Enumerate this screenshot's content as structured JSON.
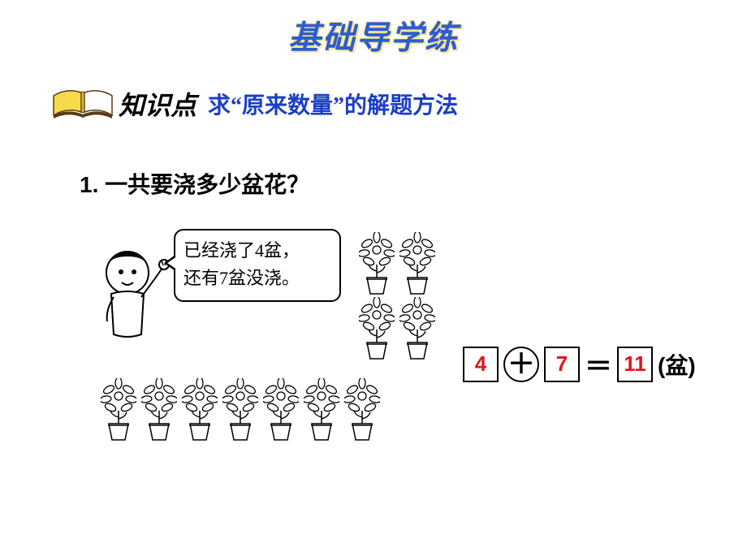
{
  "title": "基础导学练",
  "knowledgePoint": {
    "label": "知识点",
    "text": "求“原来数量”的解题方法",
    "color": "#1b3fc6"
  },
  "question": {
    "number": "1.",
    "text": "一共要浇多少盆花？"
  },
  "speech": {
    "line1": "已经浇了4盆，",
    "line2": "还有7盆没浇。"
  },
  "flowers": {
    "topGrid": [
      [
        330,
        10
      ],
      [
        380,
        10
      ],
      [
        330,
        90
      ],
      [
        380,
        90
      ]
    ],
    "bottomRow": [
      [
        12,
        190
      ],
      [
        62,
        190
      ],
      [
        112,
        190
      ],
      [
        162,
        190
      ],
      [
        212,
        190
      ],
      [
        262,
        190
      ],
      [
        312,
        190
      ]
    ]
  },
  "equation": {
    "a": "4",
    "op": "＋",
    "b": "7",
    "eq": "＝",
    "result": "11",
    "unit": "(盆)",
    "answerColor": "#e0161a"
  },
  "colors": {
    "titleColor": "#2b5cd4",
    "titleShadow": "#f9e48a",
    "background": "#ffffff"
  }
}
